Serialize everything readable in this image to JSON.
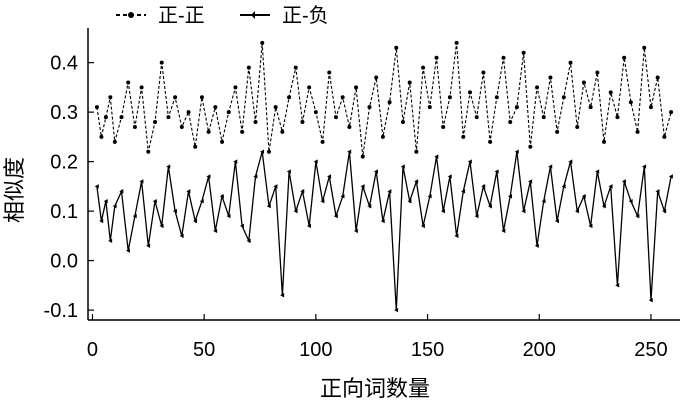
{
  "chart_data": {
    "type": "line",
    "title": "",
    "xlabel": "正向词数量",
    "ylabel": "相似度",
    "xlim": [
      -2,
      263
    ],
    "ylim": [
      -0.12,
      0.47
    ],
    "xticks": [
      0,
      50,
      100,
      150,
      200,
      250
    ],
    "yticks": [
      -0.1,
      0.0,
      0.1,
      0.2,
      0.3,
      0.4
    ],
    "ytick_labels": [
      "-0.1",
      "0.0",
      "0.1",
      "0.2",
      "0.3",
      "0.4"
    ],
    "grid": false,
    "legend": "top-left",
    "series": [
      {
        "name": "正-正",
        "style": "dashed",
        "color": "#000000",
        "x": [
          2,
          4,
          6,
          8,
          10,
          13,
          16,
          19,
          22,
          25,
          28,
          31,
          34,
          37,
          40,
          43,
          46,
          49,
          52,
          55,
          58,
          61,
          64,
          67,
          70,
          73,
          76,
          79,
          82,
          85,
          88,
          91,
          94,
          97,
          100,
          103,
          106,
          109,
          112,
          115,
          118,
          121,
          124,
          127,
          130,
          133,
          136,
          139,
          142,
          145,
          148,
          151,
          154,
          157,
          160,
          163,
          166,
          169,
          172,
          175,
          178,
          181,
          184,
          187,
          190,
          193,
          196,
          199,
          202,
          205,
          208,
          211,
          214,
          217,
          220,
          223,
          226,
          229,
          232,
          235,
          238,
          241,
          244,
          247,
          250,
          253,
          256,
          259
        ],
        "y": [
          0.31,
          0.25,
          0.29,
          0.33,
          0.24,
          0.29,
          0.36,
          0.27,
          0.35,
          0.22,
          0.28,
          0.4,
          0.29,
          0.33,
          0.27,
          0.3,
          0.23,
          0.33,
          0.26,
          0.31,
          0.24,
          0.3,
          0.35,
          0.26,
          0.39,
          0.28,
          0.44,
          0.22,
          0.31,
          0.26,
          0.33,
          0.39,
          0.28,
          0.35,
          0.3,
          0.24,
          0.38,
          0.29,
          0.33,
          0.27,
          0.35,
          0.21,
          0.31,
          0.37,
          0.25,
          0.32,
          0.43,
          0.28,
          0.36,
          0.22,
          0.39,
          0.31,
          0.41,
          0.27,
          0.33,
          0.44,
          0.25,
          0.34,
          0.29,
          0.38,
          0.24,
          0.33,
          0.41,
          0.28,
          0.31,
          0.42,
          0.23,
          0.35,
          0.29,
          0.37,
          0.26,
          0.33,
          0.4,
          0.27,
          0.36,
          0.31,
          0.38,
          0.24,
          0.34,
          0.29,
          0.41,
          0.32,
          0.26,
          0.43,
          0.31,
          0.37,
          0.25,
          0.3
        ]
      },
      {
        "name": "正-负",
        "style": "solid",
        "color": "#000000",
        "x": [
          2,
          4,
          6,
          8,
          10,
          13,
          16,
          19,
          22,
          25,
          28,
          31,
          34,
          37,
          40,
          43,
          46,
          49,
          52,
          55,
          58,
          61,
          64,
          67,
          70,
          73,
          76,
          79,
          82,
          85,
          88,
          91,
          94,
          97,
          100,
          103,
          106,
          109,
          112,
          115,
          118,
          121,
          124,
          127,
          130,
          133,
          136,
          139,
          142,
          145,
          148,
          151,
          154,
          157,
          160,
          163,
          166,
          169,
          172,
          175,
          178,
          181,
          184,
          187,
          190,
          193,
          196,
          199,
          202,
          205,
          208,
          211,
          214,
          217,
          220,
          223,
          226,
          229,
          232,
          235,
          238,
          241,
          244,
          247,
          250,
          253,
          256,
          259
        ],
        "y": [
          0.15,
          0.08,
          0.12,
          0.04,
          0.11,
          0.14,
          0.02,
          0.09,
          0.16,
          0.03,
          0.12,
          0.07,
          0.19,
          0.1,
          0.05,
          0.14,
          0.08,
          0.12,
          0.17,
          0.06,
          0.13,
          0.09,
          0.2,
          0.07,
          0.04,
          0.17,
          0.22,
          0.11,
          0.15,
          -0.07,
          0.18,
          0.1,
          0.14,
          0.07,
          0.2,
          0.12,
          0.17,
          0.09,
          0.13,
          0.22,
          0.06,
          0.15,
          0.11,
          0.18,
          0.08,
          0.14,
          -0.1,
          0.19,
          0.12,
          0.16,
          0.07,
          0.13,
          0.21,
          0.1,
          0.17,
          0.05,
          0.14,
          0.2,
          0.09,
          0.15,
          0.11,
          0.18,
          0.06,
          0.13,
          0.22,
          0.1,
          0.16,
          0.03,
          0.12,
          0.19,
          0.08,
          0.15,
          0.2,
          0.1,
          0.13,
          0.07,
          0.18,
          0.11,
          0.15,
          -0.05,
          0.16,
          0.12,
          0.09,
          0.19,
          -0.08,
          0.14,
          0.1,
          0.17
        ]
      }
    ]
  }
}
